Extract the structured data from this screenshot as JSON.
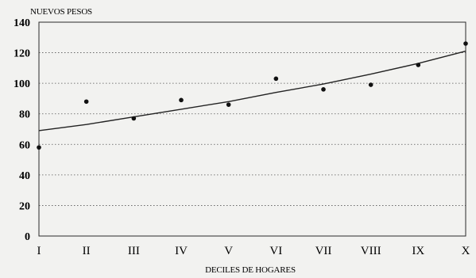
{
  "chart_data": {
    "type": "scatter",
    "ylabel": "NUEVOS PESOS",
    "xlabel": "DECILES DE HOGARES",
    "categories": [
      "I",
      "II",
      "III",
      "IV",
      "V",
      "VI",
      "VII",
      "VIII",
      "IX",
      "X"
    ],
    "ylim": [
      0,
      140
    ],
    "yticks": [
      0,
      20,
      40,
      60,
      80,
      100,
      120,
      140
    ],
    "grid": true,
    "legend": "none",
    "series": [
      {
        "type": "scatter",
        "values": [
          58,
          88,
          77,
          89,
          86,
          103,
          96,
          99,
          112,
          126
        ]
      },
      {
        "type": "line",
        "values": [
          69,
          73,
          78,
          83,
          88,
          94,
          99.5,
          106,
          113,
          121
        ]
      }
    ]
  }
}
